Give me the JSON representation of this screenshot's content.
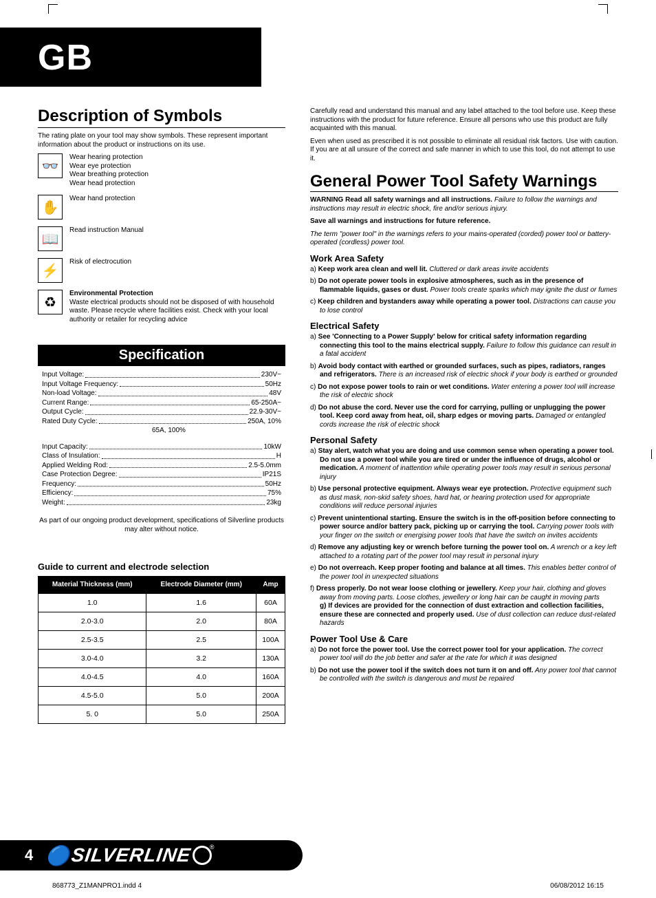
{
  "header": {
    "label": "GB"
  },
  "symbols": {
    "title": "Description of Symbols",
    "intro": "The rating plate on your tool may show symbols. These represent important information about the product or instructions on its use.",
    "rows": [
      {
        "icon": "👓",
        "text": "Wear hearing protection\nWear eye protection\nWear breathing protection\nWear head protection"
      },
      {
        "icon": "✋",
        "text": "Wear hand protection"
      },
      {
        "icon": "📖",
        "text": "Read instruction Manual"
      },
      {
        "icon": "⚡",
        "text": "Risk of electrocution"
      },
      {
        "icon": "♻",
        "title": "Environmental Protection",
        "text": "Waste electrical products should not be disposed of with household waste. Please recycle where facilities exist. Check with your local authority or retailer for recycling advice"
      }
    ]
  },
  "spec": {
    "title": "Specification",
    "items": [
      {
        "label": "Input Voltage:",
        "value": "230V~"
      },
      {
        "label": "Input Voltage Frequency:",
        "value": "50Hz"
      },
      {
        "label": "Non-load Voltage:",
        "value": "48V"
      },
      {
        "label": "Current Range:",
        "value": "65-250A~"
      },
      {
        "label": "Output Cycle:",
        "value": "22.9-30V~"
      },
      {
        "label": "Rated Duty Cycle:",
        "value": "250A, 10%"
      },
      {
        "label": "",
        "value": "65A, 100%"
      }
    ],
    "items2": [
      {
        "label": "Input Capacity:",
        "value": "10kW"
      },
      {
        "label": "Class of Insulation:",
        "value": "H"
      },
      {
        "label": "Applied Welding Rod:",
        "value": "2.5-5.0mm"
      },
      {
        "label": "Case Protection Degree:",
        "value": "IP21S"
      },
      {
        "label": "Frequency:",
        "value": "50Hz"
      },
      {
        "label": "Efficiency:",
        "value": "75%"
      },
      {
        "label": "Weight:",
        "value": "23kg"
      }
    ],
    "note": "As part of our ongoing product development, specifications of Silverline products may alter without notice."
  },
  "guide": {
    "title": "Guide to current and electrode selection",
    "columns": [
      "Material Thickness (mm)",
      "Electrode Diameter (mm)",
      "Amp"
    ],
    "rows": [
      [
        "1.0",
        "1.6",
        "60A"
      ],
      [
        "2.0-3.0",
        "2.0",
        "80A"
      ],
      [
        "2.5-3.5",
        "2.5",
        "100A"
      ],
      [
        "3.0-4.0",
        "3.2",
        "130A"
      ],
      [
        "4.0-4.5",
        "4.0",
        "160A"
      ],
      [
        "4.5-5.0",
        "5.0",
        "200A"
      ],
      [
        "5. 0",
        "5.0",
        "250A"
      ]
    ]
  },
  "right": {
    "intro1": "Carefully read and understand this manual and any label attached to the tool before use. Keep these instructions with the product for future reference. Ensure all persons who use this product are fully acquainted with this manual.",
    "intro2": "Even when used as prescribed it is not possible to eliminate all residual risk factors. Use with caution. If you are at all unsure of the correct and safe manner in which to use this tool, do not attempt to use it.",
    "title": "General Power Tool Safety Warnings",
    "warn": "WARNING Read all safety warnings and all instructions.",
    "warn_i": " Failure to follow the warnings and instructions may result in electric shock, fire and/or serious injury.",
    "save": "Save all warnings and instructions for future reference.",
    "term": "The term \"power tool\" in the warnings refers to your mains-operated (corded) power tool or battery-operated (cordless) power tool.",
    "sections": [
      {
        "title": "Work Area Safety",
        "items": [
          {
            "l": "a)",
            "b": "Keep work area clean and well lit.",
            "i": " Cluttered or dark areas invite accidents"
          },
          {
            "l": "b)",
            "b": "Do not operate power tools in explosive atmospheres, such as in the presence of flammable liquids, gases or dust.",
            "i": " Power tools create sparks which may ignite the dust or fumes"
          },
          {
            "l": "c)",
            "b": "Keep children and bystanders away while operating a power tool.",
            "i": " Distractions can cause you to lose control"
          }
        ]
      },
      {
        "title": "Electrical Safety",
        "items": [
          {
            "l": "a)",
            "b": "See 'Connecting to a Power Supply' below for critical safety information regarding connecting this tool to the mains electrical supply.",
            "i": " Failure to follow this guidance can result in a fatal accident"
          },
          {
            "l": "b)",
            "b": "Avoid body contact with earthed or grounded surfaces, such as pipes, radiators, ranges and refrigerators.",
            "i": " There is an increased risk of electric shock if your body is earthed or grounded"
          },
          {
            "l": "c)",
            "b": "Do not expose power tools to rain or wet conditions.",
            "i": " Water entering a power tool will increase the risk of electric shock"
          },
          {
            "l": "d)",
            "b": "Do not abuse the cord. Never use the cord for carrying, pulling or unplugging the power tool. Keep cord away from heat, oil, sharp edges or moving parts.",
            "i": " Damaged or entangled cords increase the risk of electric shock"
          }
        ]
      },
      {
        "title": "Personal Safety",
        "items": [
          {
            "l": "a)",
            "b": "Stay alert, watch what you are doing and use common sense when operating a power tool. Do not use a power tool while you are tired or under the influence of drugs, alcohol or medication.",
            "i": " A moment of inattention while operating power tools may result in serious personal injury"
          },
          {
            "l": "b)",
            "b": "Use personal protective equipment. Always wear eye protection.",
            "i": " Protective equipment such as dust mask, non-skid safety shoes, hard hat, or hearing protection used for appropriate conditions will reduce personal injuries"
          },
          {
            "l": "c)",
            "b": "Prevent unintentional starting. Ensure the switch is in the off-position before connecting to power source and/or battery pack, picking up or carrying the tool.",
            "i": " Carrying power tools with your finger on the switch or energising power tools that have the switch on invites accidents"
          },
          {
            "l": "d)",
            "b": "Remove any adjusting key or wrench before turning the power tool on.",
            "i": " A wrench or a key left attached to a rotating part of the power tool may result in personal injury"
          },
          {
            "l": "e)",
            "b": "Do not overreach. Keep proper footing and balance at all times.",
            "i": " This enables better control of the power tool in unexpected situations"
          },
          {
            "l": "f)",
            "b": "Dress properly. Do not wear loose clothing or jewellery.",
            "i": " Keep your hair, clothing and gloves away from moving parts. Loose clothes, jewellery or long hair can be caught in moving parts",
            "extra_b": "g) If devices are provided for the connection of dust extraction and collection facilities, ensure these are connected and properly used.",
            "extra_i": " Use of dust collection can reduce dust-related hazards"
          }
        ]
      },
      {
        "title": "Power Tool Use & Care",
        "items": [
          {
            "l": "a)",
            "b": "Do not force the power tool. Use the correct power tool for your application.",
            "i": " The correct power tool will do the job better and safer at the rate for which it was designed"
          },
          {
            "l": "b)",
            "b": "Do not use the power tool if the switch does not turn it on and off.",
            "i": " Any power tool that cannot be controlled with the switch is dangerous and must be repaired"
          }
        ]
      }
    ]
  },
  "footer": {
    "page": "4",
    "brand": "SILVERLINE",
    "file": "868773_Z1MANPRO1.indd   4",
    "stamp": "06/08/2012   16:15"
  }
}
